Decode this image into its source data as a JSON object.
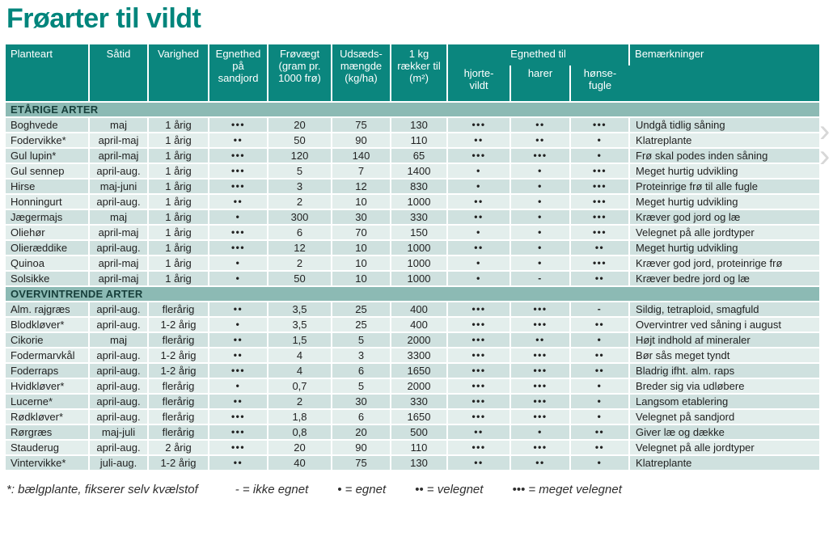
{
  "page": {
    "title": "Frøarter til vildt"
  },
  "colors": {
    "header_teal": "#0b867e",
    "title_teal": "#00857c",
    "section_band": "#8cbab4",
    "row_dark": "#cfe1df",
    "row_light": "#e3eeec",
    "separator": "#ffffff"
  },
  "table": {
    "headers": {
      "planteart": "Planteart",
      "saatid": "Såtid",
      "varighed": "Varighed",
      "sandjord": "Egnethed\npå\nsandjord",
      "frovaegt": "Frøvægt\n(gram pr.\n1000 frø)",
      "udsaed": "Udsæds-\nmængde\n(kg/ha)",
      "raekker": "1 kg\nrækker til\n(m²)",
      "egnethed_til": "Egnethed til",
      "hjortevildt": "hjorte-\nvildt",
      "harer": "harer",
      "honsefugle": "hønse-\nfugle",
      "bemaerkninger": "Bemærkninger"
    },
    "sections": [
      {
        "label": "ETÅRIGE ARTER",
        "rows": [
          [
            "Boghvede",
            "maj",
            "1 årig",
            "•••",
            "20",
            "75",
            "130",
            "•••",
            "••",
            "•••",
            "Undgå tidlig såning"
          ],
          [
            "Fodervikke*",
            "april-maj",
            "1 årig",
            "••",
            "50",
            "90",
            "110",
            "••",
            "••",
            "•",
            "Klatreplante"
          ],
          [
            "Gul lupin*",
            "april-maj",
            "1 årig",
            "•••",
            "120",
            "140",
            "65",
            "•••",
            "•••",
            "•",
            "Frø skal podes inden såning"
          ],
          [
            "Gul sennep",
            "april-aug.",
            "1 årig",
            "•••",
            "5",
            "7",
            "1400",
            "•",
            "•",
            "•••",
            "Meget hurtig udvikling"
          ],
          [
            "Hirse",
            "maj-juni",
            "1 årig",
            "•••",
            "3",
            "12",
            "830",
            "•",
            "•",
            "•••",
            "Proteinrige frø til alle fugle"
          ],
          [
            "Honningurt",
            "april-aug.",
            "1 årig",
            "••",
            "2",
            "10",
            "1000",
            "••",
            "•",
            "•••",
            "Meget hurtig udvikling"
          ],
          [
            "Jægermajs",
            "maj",
            "1 årig",
            "•",
            "300",
            "30",
            "330",
            "••",
            "•",
            "•••",
            "Kræver god jord og læ"
          ],
          [
            "Oliehør",
            "april-maj",
            "1 årig",
            "•••",
            "6",
            "70",
            "150",
            "•",
            "•",
            "•••",
            "Velegnet på alle jordtyper"
          ],
          [
            "Olieræddike",
            "april-aug.",
            "1 årig",
            "•••",
            "12",
            "10",
            "1000",
            "••",
            "•",
            "••",
            "Meget hurtig udvikling"
          ],
          [
            "Quinoa",
            "april-maj",
            "1 årig",
            "•",
            "2",
            "10",
            "1000",
            "•",
            "•",
            "•••",
            "Kræver god jord, proteinrige frø"
          ],
          [
            "Solsikke",
            "april-maj",
            "1 årig",
            "•",
            "50",
            "10",
            "1000",
            "•",
            "-",
            "••",
            "Kræver bedre jord og læ"
          ]
        ]
      },
      {
        "label": "OVERVINTRENDE ARTER",
        "rows": [
          [
            "Alm. rajgræs",
            "april-aug.",
            "flerårig",
            "••",
            "3,5",
            "25",
            "400",
            "•••",
            "•••",
            "-",
            "Sildig, tetraploid, smagfuld"
          ],
          [
            "Blodkløver*",
            "april-aug.",
            "1-2 årig",
            "•",
            "3,5",
            "25",
            "400",
            "•••",
            "•••",
            "••",
            "Overvintrer ved såning i august"
          ],
          [
            "Cikorie",
            "maj",
            "flerårig",
            "••",
            "1,5",
            "5",
            "2000",
            "•••",
            "••",
            "•",
            "Højt indhold af mineraler"
          ],
          [
            "Fodermarvkål",
            "april-aug.",
            "1-2 årig",
            "••",
            "4",
            "3",
            "3300",
            "•••",
            "•••",
            "••",
            "Bør sås meget tyndt"
          ],
          [
            "Foderraps",
            "april-aug.",
            "1-2 årig",
            "•••",
            "4",
            "6",
            "1650",
            "•••",
            "•••",
            "••",
            "Bladrig ifht. alm. raps"
          ],
          [
            "Hvidkløver*",
            "april-aug.",
            "flerårig",
            "•",
            "0,7",
            "5",
            "2000",
            "•••",
            "•••",
            "•",
            "Breder sig via udløbere"
          ],
          [
            "Lucerne*",
            "april-aug.",
            "flerårig",
            "••",
            "2",
            "30",
            "330",
            "•••",
            "•••",
            "•",
            "Langsom etablering"
          ],
          [
            "Rødkløver*",
            "april-aug.",
            "flerårig",
            "•••",
            "1,8",
            "6",
            "1650",
            "•••",
            "•••",
            "•",
            "Velegnet på sandjord"
          ],
          [
            "Rørgræs",
            "maj-juli",
            "flerårig",
            "•••",
            "0,8",
            "20",
            "500",
            "••",
            "•",
            "••",
            "Giver læ og dække"
          ],
          [
            "Stauderug",
            "april-aug.",
            "2 årig",
            "•••",
            "20",
            "90",
            "110",
            "•••",
            "•••",
            "••",
            "Velegnet på alle jordtyper"
          ],
          [
            "Vintervikke*",
            "juli-aug.",
            "1-2 årig",
            "••",
            "40",
            "75",
            "130",
            "••",
            "••",
            "•",
            "Klatreplante"
          ]
        ]
      }
    ]
  },
  "legend": {
    "note": "*: bælgplante, fikserer selv kvælstof",
    "items": [
      "- = ikke egnet",
      "• = egnet",
      "•• = velegnet",
      "••• = meget velegnet"
    ]
  },
  "edge_control": {
    "chevron1": "›",
    "chevron2": "›"
  }
}
